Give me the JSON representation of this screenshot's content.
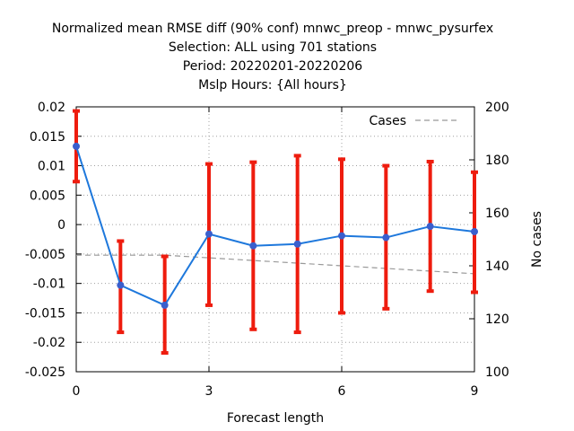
{
  "chart_data": {
    "type": "line",
    "title_lines": [
      "Normalized mean RMSE diff (90% conf) mnwc_preop - mnwc_pysurfex",
      "Selection: ALL using   701 stations",
      "Period: 20220201-20220206",
      "Mslp   Hours: {All hours}"
    ],
    "xlabel": "Forecast length",
    "ylabel_right": "No cases",
    "x": [
      0,
      1,
      2,
      3,
      4,
      5,
      6,
      7,
      8,
      9
    ],
    "xlim": [
      0,
      9
    ],
    "ylim": [
      -0.025,
      0.02
    ],
    "y2lim": [
      100,
      200
    ],
    "x_ticks": [
      0,
      3,
      6,
      9
    ],
    "x_tick_labels": [
      "0",
      "3",
      "6",
      "9"
    ],
    "y_ticks": [
      0.02,
      0.015,
      0.01,
      0.005,
      0,
      -0.005,
      -0.01,
      -0.015,
      -0.02,
      -0.025
    ],
    "y_tick_labels": [
      "0.02",
      "0.015",
      "0.01",
      "0.005",
      "0",
      "-0.005",
      "-0.01",
      "-0.015",
      "-0.02",
      "-0.025"
    ],
    "y2_ticks": [
      200,
      180,
      160,
      140,
      120,
      100
    ],
    "y2_tick_labels": [
      "200",
      "180",
      "160",
      "140",
      "120",
      "100"
    ],
    "grid": true,
    "legend_position": "top-right",
    "series": [
      {
        "axis": "left",
        "color": "#1e78dc",
        "marker_color": "#3a5fcd",
        "values": [
          0.0133,
          -0.0103,
          -0.0137,
          -0.0016,
          -0.0036,
          -0.0033,
          -0.0019,
          -0.0022,
          -0.0003,
          -0.0012
        ]
      },
      {
        "axis": "left",
        "kind": "errorbar",
        "color": "#ee1c0e",
        "low": [
          0.0073,
          -0.0183,
          -0.0218,
          -0.0137,
          -0.0178,
          -0.0183,
          -0.015,
          -0.0143,
          -0.0113,
          -0.0115
        ],
        "high": [
          0.0193,
          -0.0028,
          -0.0054,
          0.0103,
          0.0106,
          0.0117,
          0.0111,
          0.01,
          0.0107,
          0.0089
        ]
      },
      {
        "name": "Cases",
        "axis": "right",
        "color": "#999999",
        "dash": true,
        "values": [
          144,
          144,
          144,
          143,
          142,
          141,
          140,
          139,
          138,
          137
        ]
      }
    ]
  }
}
